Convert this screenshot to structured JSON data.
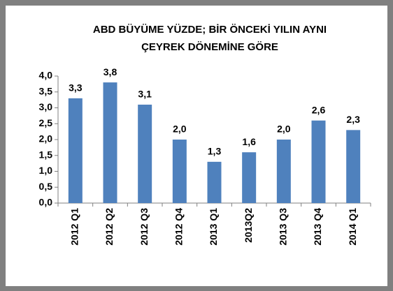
{
  "chart_data": {
    "type": "bar",
    "title": [
      "ABD BÜYÜME YÜZDE; BİR ÖNCEKİ YILIN AYNI",
      "ÇEYREK DÖNEMİNE GÖRE"
    ],
    "categories": [
      "2012 Q1",
      "2012 Q2",
      "2012 Q3",
      "2012 Q4",
      "2013 Q1",
      "2013Q2",
      "2013 Q3",
      "2013 Q4",
      "2014 Q1"
    ],
    "values": [
      3.3,
      3.8,
      3.1,
      2.0,
      1.3,
      1.6,
      2.0,
      2.6,
      2.3
    ],
    "value_labels": [
      "3,3",
      "3,8",
      "3,1",
      "2,0",
      "1,3",
      "1,6",
      "2,0",
      "2,6",
      "2,3"
    ],
    "color": "#4f81bd",
    "ylim": [
      0,
      4
    ],
    "yticks": [
      {
        "value": 0,
        "label": "0,0"
      },
      {
        "value": 0.5,
        "label": "0,5"
      },
      {
        "value": 1,
        "label": "1,0"
      },
      {
        "value": 1.5,
        "label": "1,5"
      },
      {
        "value": 2,
        "label": "2,0"
      },
      {
        "value": 2.5,
        "label": "2,5"
      },
      {
        "value": 3,
        "label": "3,0"
      },
      {
        "value": 3.5,
        "label": "3,5"
      },
      {
        "value": 4,
        "label": "4,0"
      }
    ],
    "grid": false
  }
}
